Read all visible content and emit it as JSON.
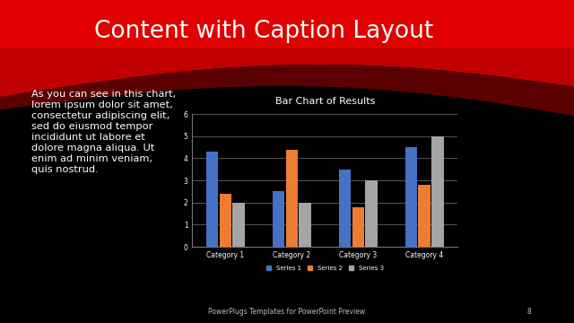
{
  "slide": {
    "title": "Content with Caption Layout",
    "caption": [
      "As you can see in this chart,",
      "lorem ipsum dolor sit amet,",
      "consectetur adipiscing elit,",
      "sed do eiusmod tempor",
      "incididunt ut labore et",
      "dolore magna aliqua. Ut",
      "enim ad minim veniam,",
      "quis nostrud."
    ],
    "footer": "PowerPlugs Templates for PowerPoint Preview",
    "page": "8"
  },
  "chart_data": {
    "type": "bar",
    "title": "Bar Chart of Results",
    "categories": [
      "Category 1",
      "Category 2",
      "Category 3",
      "Category 4"
    ],
    "series": [
      {
        "name": "Series 1",
        "color": "#4472c4",
        "values": [
          4.3,
          2.5,
          3.5,
          4.5
        ]
      },
      {
        "name": "Series 2",
        "color": "#ed7d31",
        "values": [
          2.4,
          4.4,
          1.8,
          2.8
        ]
      },
      {
        "name": "Series 3",
        "color": "#a5a5a5",
        "values": [
          2,
          2,
          3,
          5
        ]
      }
    ],
    "ylim": [
      0,
      6
    ],
    "yticks": [
      0,
      1,
      2,
      3,
      4,
      5,
      6
    ],
    "grid": true,
    "legend": "bottom"
  }
}
